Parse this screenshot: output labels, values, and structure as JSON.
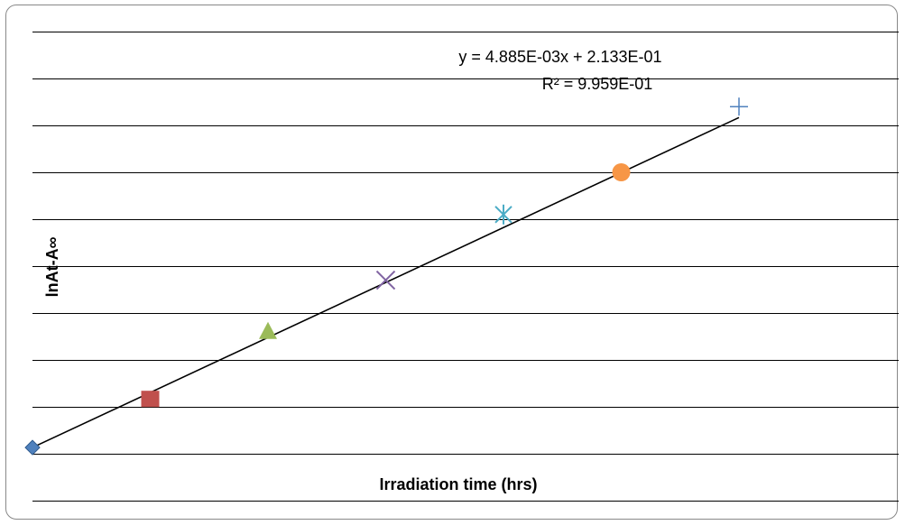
{
  "chart_data": {
    "type": "scatter",
    "title": "",
    "xlabel": "Irradiation time (hrs)",
    "ylabel": "lnAt-A∞",
    "grid": true,
    "legend": "none",
    "points": [
      {
        "x": 0,
        "y": 0.2133,
        "marker": "diamond",
        "color": "#4f81bd"
      },
      {
        "x": 24,
        "y": 0.315,
        "marker": "square",
        "color": "#c0504d"
      },
      {
        "x": 48,
        "y": 0.46,
        "marker": "triangle",
        "color": "#9bbb59"
      },
      {
        "x": 72,
        "y": 0.57,
        "marker": "x",
        "color": "#8064a2"
      },
      {
        "x": 96,
        "y": 0.71,
        "marker": "star",
        "color": "#4bacc6"
      },
      {
        "x": 120,
        "y": 0.8,
        "marker": "circle",
        "color": "#f79646"
      },
      {
        "x": 144,
        "y": 0.94,
        "marker": "plus",
        "color": "#4f81bd"
      }
    ],
    "trendline": {
      "slope": 0.004885,
      "intercept": 0.2133,
      "color": "#000000",
      "equation_label": "y = 4.885E-03x + 2.133E-01",
      "r2_label": "R² = 9.959E-01"
    },
    "xlim": [
      0,
      144
    ],
    "ylim": [
      0.1,
      1.1
    ],
    "gridline_count": 11
  }
}
